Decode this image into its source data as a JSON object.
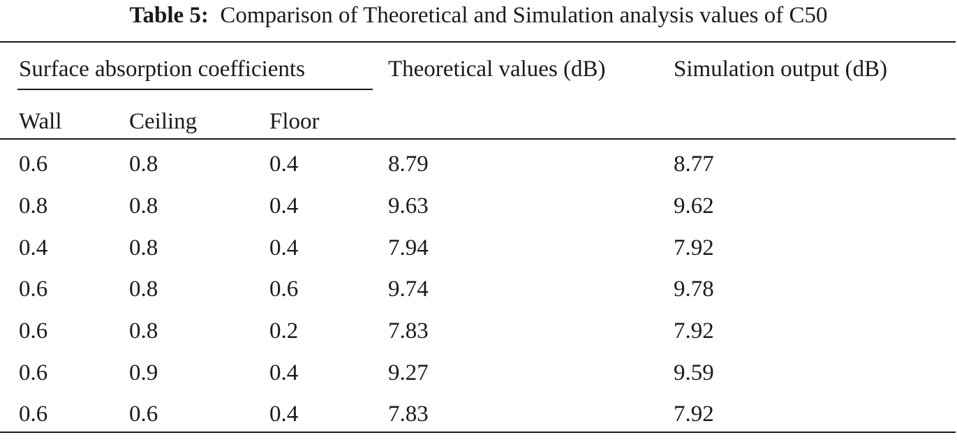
{
  "caption": {
    "label": "Table 5:",
    "text": "Comparison of Theoretical and Simulation analysis values of C50"
  },
  "header": {
    "group": "Surface absorption coefficients",
    "theoretical": "Theoretical values (dB)",
    "simulation": "Simulation output (dB)",
    "wall": "Wall",
    "ceiling": "Ceiling",
    "floor": "Floor"
  },
  "rows": [
    {
      "wall": "0.6",
      "ceiling": "0.8",
      "floor": "0.4",
      "theoretical": "8.79",
      "simulation": "8.77"
    },
    {
      "wall": "0.8",
      "ceiling": "0.8",
      "floor": "0.4",
      "theoretical": "9.63",
      "simulation": "9.62"
    },
    {
      "wall": "0.4",
      "ceiling": "0.8",
      "floor": "0.4",
      "theoretical": "7.94",
      "simulation": "7.92"
    },
    {
      "wall": "0.6",
      "ceiling": "0.8",
      "floor": "0.6",
      "theoretical": "9.74",
      "simulation": "9.78"
    },
    {
      "wall": "0.6",
      "ceiling": "0.8",
      "floor": "0.2",
      "theoretical": "7.83",
      "simulation": "7.92"
    },
    {
      "wall": "0.6",
      "ceiling": "0.9",
      "floor": "0.4",
      "theoretical": "9.27",
      "simulation": "9.59"
    },
    {
      "wall": "0.6",
      "ceiling": "0.6",
      "floor": "0.4",
      "theoretical": "7.83",
      "simulation": "7.92"
    }
  ]
}
